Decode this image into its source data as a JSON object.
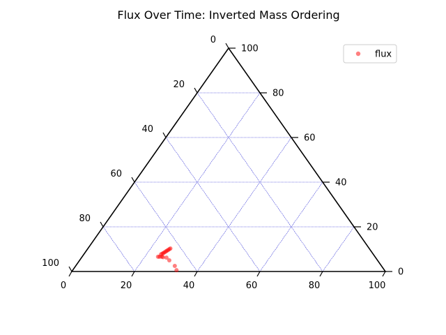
{
  "chart_data": {
    "type": "scatter",
    "subtype": "ternary",
    "title": "Flux Over Time: Inverted Mass Ordering",
    "axes": {
      "left": {
        "ticks": [
          0,
          20,
          40,
          60,
          80,
          100
        ]
      },
      "right": {
        "ticks": [
          0,
          20,
          40,
          60,
          80,
          100
        ]
      },
      "bottom": {
        "ticks": [
          0,
          20,
          40,
          60,
          80,
          100
        ]
      }
    },
    "grid": true,
    "grid_color": "#0000cc",
    "frame_color": "#000000",
    "series": [
      {
        "name": "flux",
        "color": "#ff0000",
        "points": [
          {
            "bottom": 26.3,
            "right": 10.3,
            "left": 63.4
          },
          {
            "bottom": 26.1,
            "right": 10.0,
            "left": 63.9
          },
          {
            "bottom": 25.9,
            "right": 9.6,
            "left": 64.5
          },
          {
            "bottom": 25.7,
            "right": 9.3,
            "left": 65.0
          },
          {
            "bottom": 25.5,
            "right": 9.0,
            "left": 65.5
          },
          {
            "bottom": 25.3,
            "right": 8.6,
            "left": 66.1
          },
          {
            "bottom": 25.1,
            "right": 8.3,
            "left": 66.6
          },
          {
            "bottom": 24.9,
            "right": 8.0,
            "left": 67.1
          },
          {
            "bottom": 24.6,
            "right": 7.7,
            "left": 67.7
          },
          {
            "bottom": 24.2,
            "right": 6.6,
            "left": 69.2
          },
          {
            "bottom": 24.7,
            "right": 6.6,
            "left": 68.7
          },
          {
            "bottom": 25.4,
            "right": 6.6,
            "left": 68.0
          },
          {
            "bottom": 25.9,
            "right": 6.4,
            "left": 67.7
          },
          {
            "bottom": 27.1,
            "right": 6.2,
            "left": 66.7
          },
          {
            "bottom": 28.6,
            "right": 5.0,
            "left": 66.4
          },
          {
            "bottom": 31.6,
            "right": 2.5,
            "left": 65.9
          },
          {
            "bottom": 33.1,
            "right": 0.6,
            "left": 66.3
          }
        ]
      }
    ],
    "legend": {
      "position": "top-right",
      "entries": [
        "flux"
      ]
    }
  }
}
